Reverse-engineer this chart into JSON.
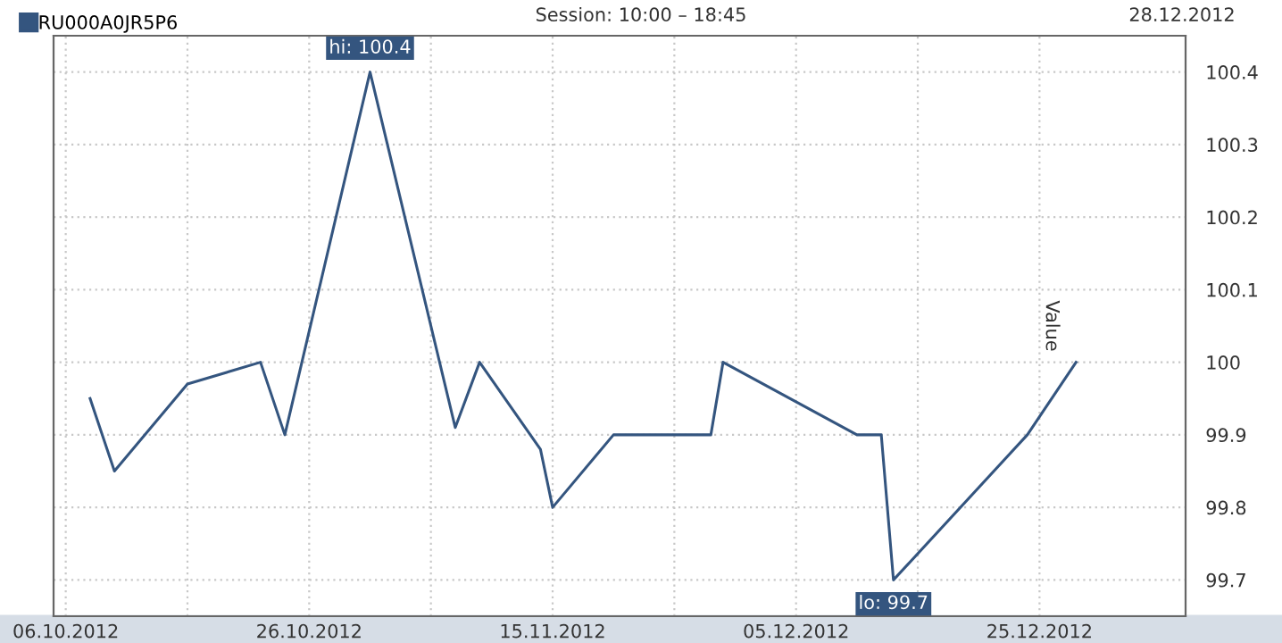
{
  "chart_data": {
    "type": "line",
    "subtitle": "Session: 10:00 – 18:45",
    "ylabel": "Value",
    "x": [
      "2012-10-08",
      "2012-10-10",
      "2012-10-14",
      "2012-10-16",
      "2012-10-22",
      "2012-10-24",
      "2012-10-31",
      "2012-11-07",
      "2012-11-09",
      "2012-11-14",
      "2012-11-15",
      "2012-11-20",
      "2012-11-28",
      "2012-11-29",
      "2012-12-10",
      "2012-12-12",
      "2012-12-13",
      "2012-12-24",
      "2012-12-28"
    ],
    "series": [
      {
        "name": "RU000A0JR5P6",
        "color": "#34557f",
        "values": [
          99.95,
          99.85,
          99.93,
          99.97,
          100.0,
          99.9,
          100.4,
          99.91,
          100.0,
          99.88,
          99.8,
          99.9,
          99.9,
          100.0,
          99.9,
          99.9,
          99.7,
          99.9,
          100.0
        ]
      }
    ],
    "annotations": [
      "28.12.2012",
      {
        "text": "hi: 100.4",
        "x": "2012-10-31",
        "y": 100.4
      },
      {
        "text": "lo: 99.7",
        "x": "2012-12-13",
        "y": 99.7
      }
    ],
    "xlim": [
      "2012-10-05",
      "2013-01-06"
    ],
    "xticks": [
      {
        "value": "2012-10-06",
        "label": "06.10.2012"
      },
      {
        "value": "2012-10-16",
        "label": null
      },
      {
        "value": "2012-10-26",
        "label": "26.10.2012"
      },
      {
        "value": "2012-11-05",
        "label": null
      },
      {
        "value": "2012-11-15",
        "label": "15.11.2012"
      },
      {
        "value": "2012-11-25",
        "label": null
      },
      {
        "value": "2012-12-05",
        "label": "05.12.2012"
      },
      {
        "value": "2012-12-15",
        "label": null
      },
      {
        "value": "2012-12-25",
        "label": "25.12.2012"
      }
    ],
    "ylim": [
      99.65,
      100.45
    ],
    "yticks": [
      99.7,
      99.8,
      99.9,
      100,
      100.1,
      100.2,
      100.3,
      100.4
    ],
    "grid": true,
    "legend": "top left",
    "marker": "none",
    "line_style": "solid"
  }
}
